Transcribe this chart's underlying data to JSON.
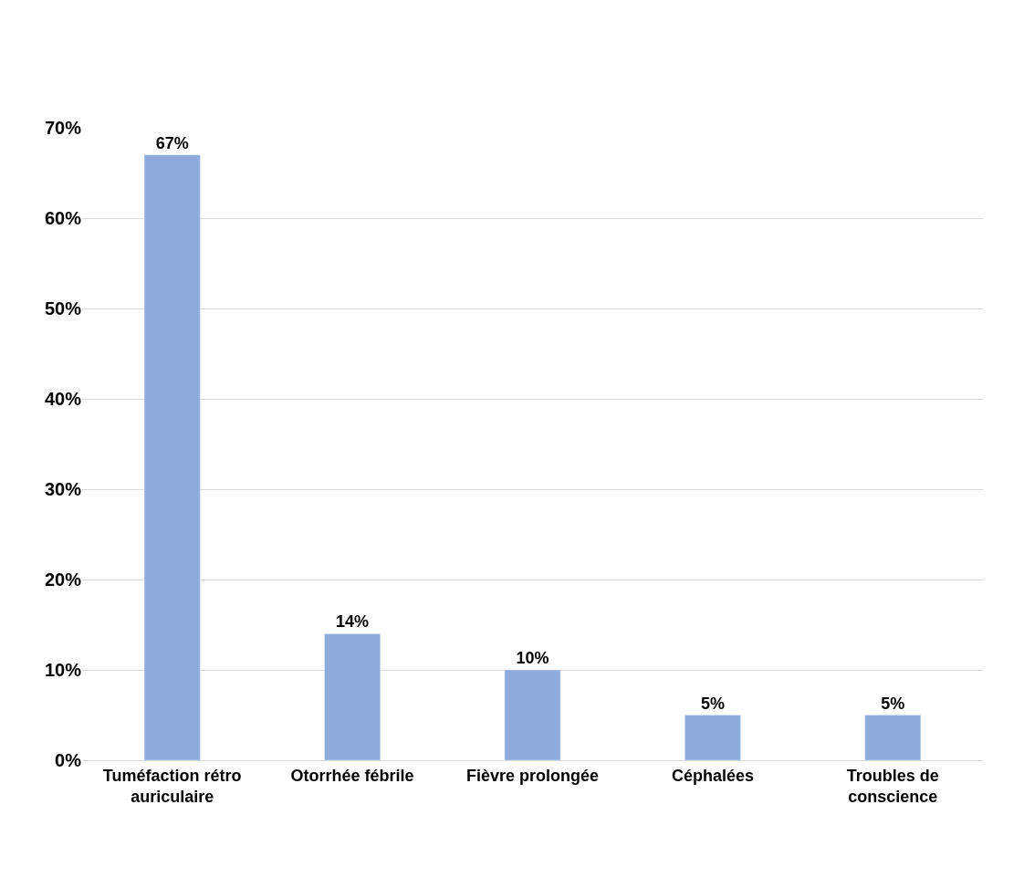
{
  "chart_data": {
    "type": "bar",
    "categories": [
      "Tuméfaction rétro auriculaire",
      "Otorrhée fébrile",
      "Fièvre prolongée",
      "Céphalées",
      "Troubles de conscience"
    ],
    "values": [
      67,
      14,
      10,
      5,
      5
    ],
    "value_labels": [
      "67%",
      "14%",
      "10%",
      "5%",
      "5%"
    ],
    "color": "#8faadc",
    "ylim": [
      0,
      70
    ],
    "yticks": [
      {
        "value": 0,
        "label": "0%"
      },
      {
        "value": 10,
        "label": "10%"
      },
      {
        "value": 20,
        "label": "20%"
      },
      {
        "value": 30,
        "label": "30%"
      },
      {
        "value": 40,
        "label": "40%"
      },
      {
        "value": 50,
        "label": "50%"
      },
      {
        "value": 60,
        "label": "60%"
      },
      {
        "value": 70,
        "label": "70%"
      }
    ],
    "grid": "y"
  }
}
